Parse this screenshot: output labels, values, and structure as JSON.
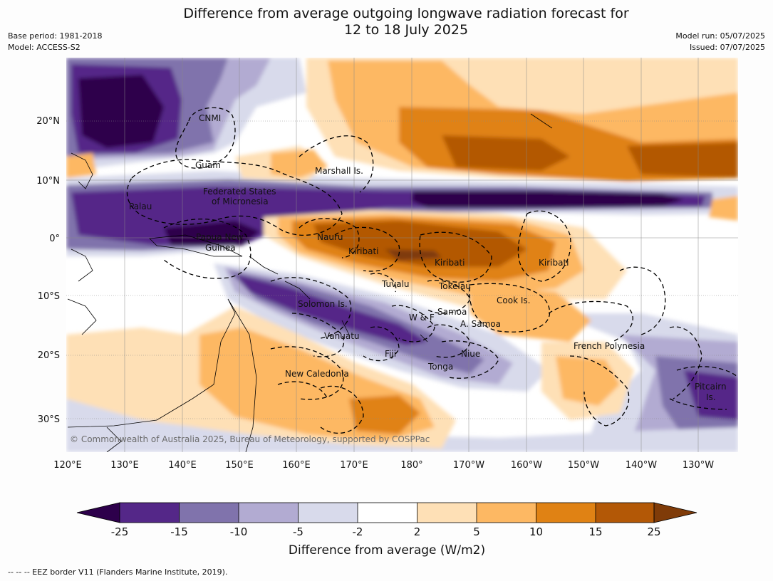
{
  "title": {
    "line1": "Difference from average outgoing longwave radiation forecast for",
    "line2": "12 to 18 July 2025"
  },
  "meta": {
    "base_period": "Base period: 1981-2018",
    "model": "Model: ACCESS-S2",
    "model_run": "Model run: 05/07/2025",
    "issued": "Issued: 07/07/2025"
  },
  "map": {
    "lon_labels": [
      "120°E",
      "130°E",
      "140°E",
      "150°E",
      "160°E",
      "170°E",
      "180°",
      "170°W",
      "160°W",
      "150°W",
      "140°W",
      "130°W"
    ],
    "lat_labels": [
      "20°N",
      "10°N",
      "0°",
      "10°S",
      "20°S",
      "30°S"
    ],
    "place_labels": [
      {
        "id": "cnmi",
        "text": "CNMI"
      },
      {
        "id": "guam",
        "text": "Guam"
      },
      {
        "id": "marshall",
        "text": "Marshall Is."
      },
      {
        "id": "fsm1",
        "text": "Federated States"
      },
      {
        "id": "fsm2",
        "text": "of Micronesia"
      },
      {
        "id": "palau",
        "text": "Palau"
      },
      {
        "id": "png1",
        "text": "Papua New"
      },
      {
        "id": "png2",
        "text": "Guinea"
      },
      {
        "id": "nauru",
        "text": "Nauru"
      },
      {
        "id": "kiribati1",
        "text": "Kiribati"
      },
      {
        "id": "kiribati2",
        "text": "Kiribati"
      },
      {
        "id": "kiribati3",
        "text": "Kiribati"
      },
      {
        "id": "tuvalu",
        "text": "Tuvalu"
      },
      {
        "id": "tokelau",
        "text": "Tokelau"
      },
      {
        "id": "cook",
        "text": "Cook Is."
      },
      {
        "id": "solomon",
        "text": "Solomon Is."
      },
      {
        "id": "wf",
        "text": "W & F"
      },
      {
        "id": "samoa",
        "text": "Samoa"
      },
      {
        "id": "asamoa",
        "text": "A. Samoa"
      },
      {
        "id": "vanuatu",
        "text": "Vanuatu"
      },
      {
        "id": "fiji",
        "text": "Fiji"
      },
      {
        "id": "niue",
        "text": "Niue"
      },
      {
        "id": "tonga",
        "text": "Tonga"
      },
      {
        "id": "frpoly",
        "text": "French Polynesia"
      },
      {
        "id": "newcal",
        "text": "New Caledonia"
      },
      {
        "id": "pitcairn1",
        "text": "Pitcairn"
      },
      {
        "id": "pitcairn2",
        "text": "Is."
      }
    ],
    "copyright": "© Commonwealth of Australia 2025, Bureau of Meteorology, supported by COSPPac"
  },
  "colorbar": {
    "label": "Difference from average (W/m2)",
    "ticks": [
      "-25",
      "-15",
      "-10",
      "-5",
      "-2",
      "2",
      "5",
      "10",
      "15",
      "25"
    ],
    "colors": [
      "#2d004b",
      "#542788",
      "#8073ac",
      "#b2abd2",
      "#d8daeb",
      "#ffffff",
      "#fee0b6",
      "#fdb863",
      "#e08214",
      "#b35806",
      "#7f3b08"
    ]
  },
  "footer": {
    "legend": "--  --  -- EEZ border V11 (Flanders Marine Institute, 2019)."
  }
}
